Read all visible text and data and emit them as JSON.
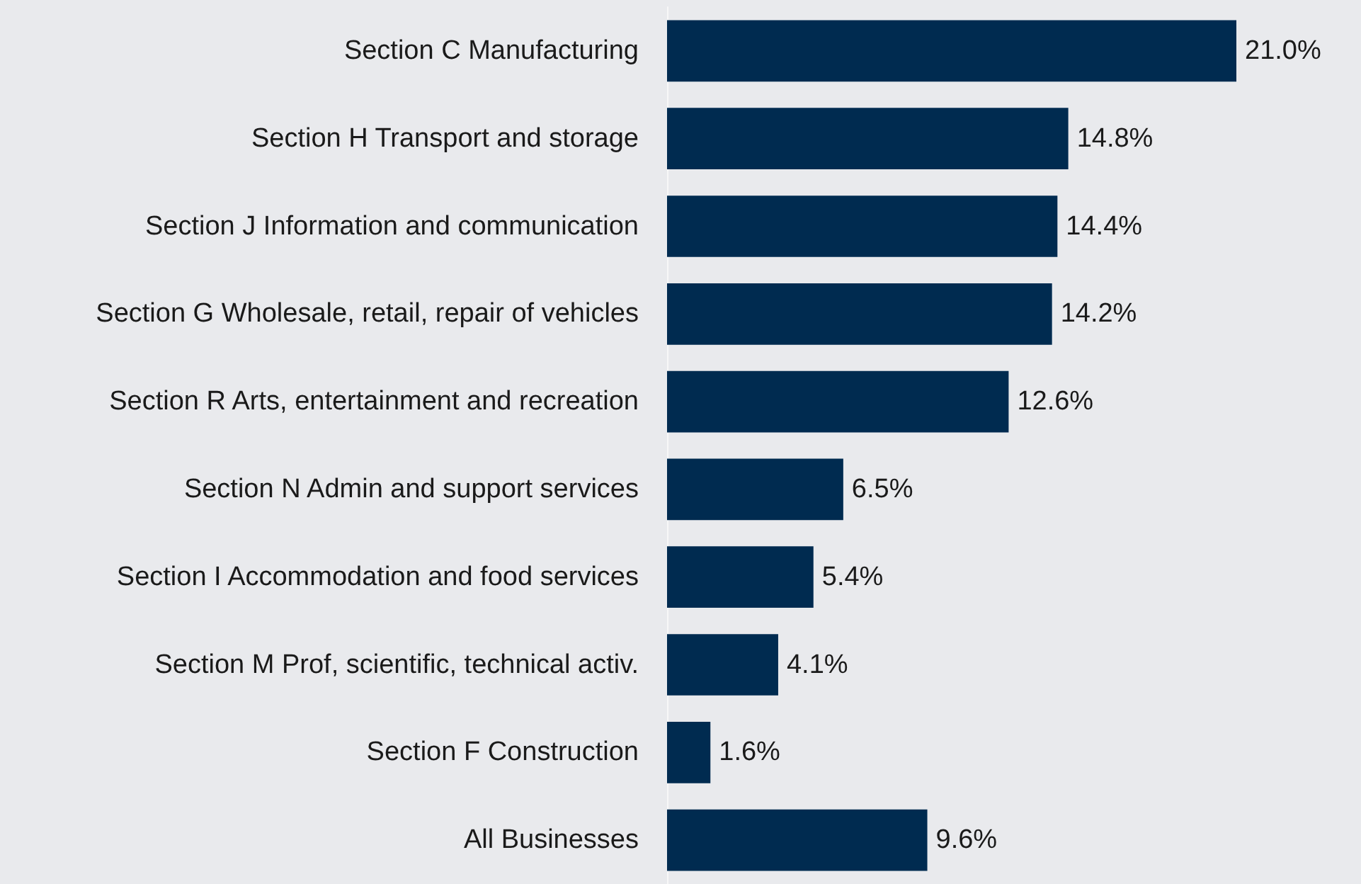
{
  "chart_data": {
    "type": "bar",
    "orientation": "horizontal",
    "categories": [
      "Section C Manufacturing",
      "Section H Transport and storage",
      "Section J Information and communication",
      "Section G Wholesale, retail, repair of vehicles",
      "Section R Arts, entertainment and recreation",
      "Section N Admin and support services",
      "Section I Accommodation and food services",
      "Section M Prof, scientific, technical activ.",
      "Section F Construction",
      "All Businesses"
    ],
    "values": [
      21.0,
      14.8,
      14.4,
      14.2,
      12.6,
      6.5,
      5.4,
      4.1,
      1.6,
      9.6
    ],
    "value_labels": [
      "21.0%",
      "14.8%",
      "14.4%",
      "14.2%",
      "12.6%",
      "6.5%",
      "5.4%",
      "4.1%",
      "1.6%",
      "9.6%"
    ],
    "color": "#002b50"
  }
}
